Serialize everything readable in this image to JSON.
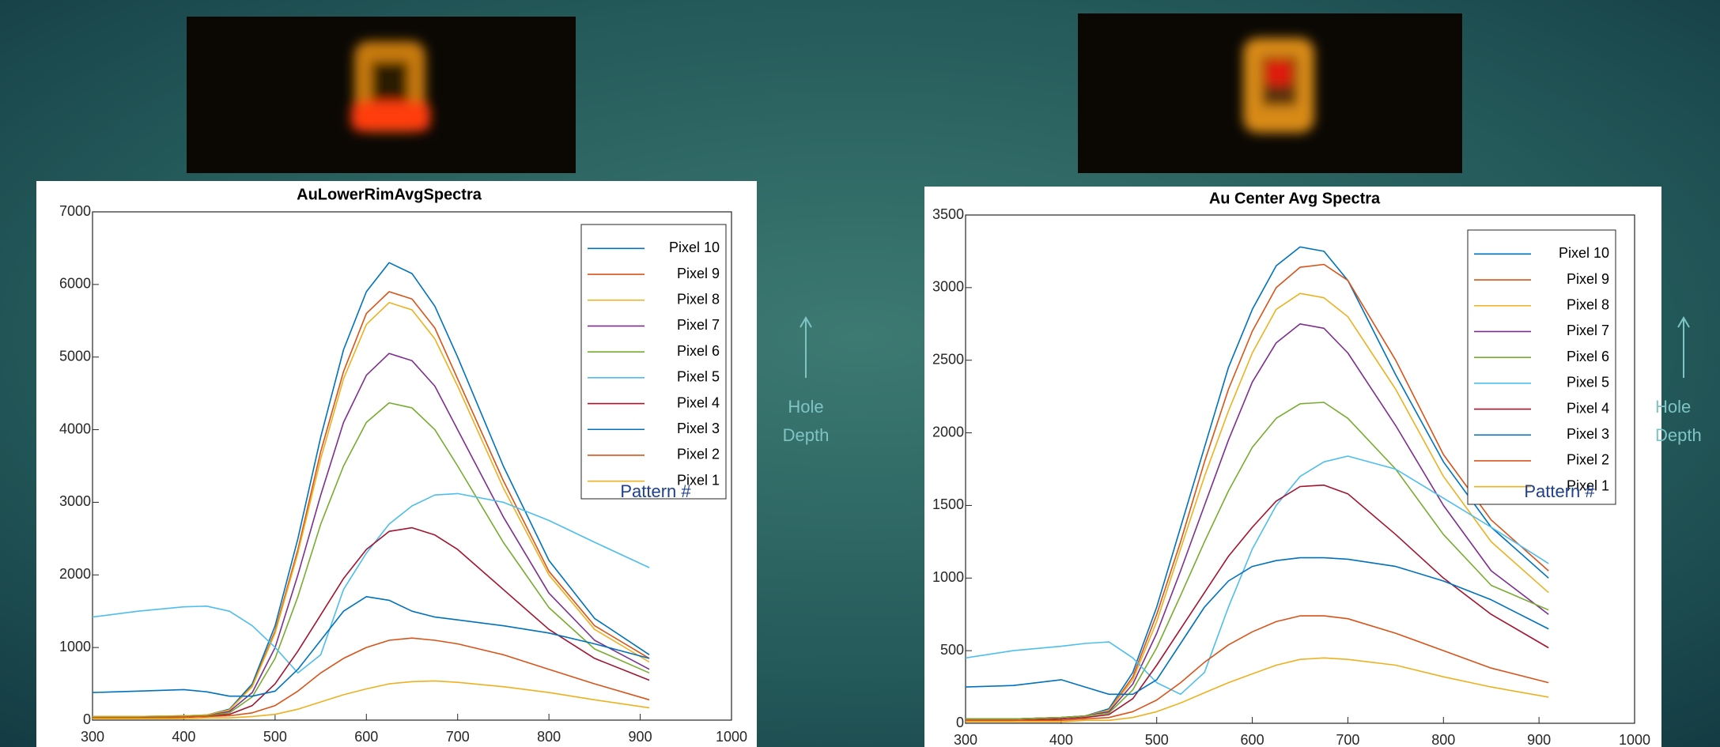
{
  "chart_data": [
    {
      "type": "line",
      "title": "AuLowerRimAvgSpectra",
      "x": [
        300,
        350,
        400,
        425,
        450,
        475,
        500,
        525,
        550,
        575,
        600,
        625,
        650,
        675,
        700,
        750,
        800,
        850,
        910
      ],
      "xlim": [
        300,
        1000
      ],
      "xticks": [
        300,
        400,
        500,
        600,
        700,
        800,
        900,
        1000
      ],
      "ylim": [
        0,
        7000
      ],
      "yticks": [
        0,
        1000,
        2000,
        3000,
        4000,
        5000,
        6000,
        7000
      ],
      "grid": false,
      "legend": "upper right",
      "annotations": [
        "Pattern #",
        "Hole",
        "Depth"
      ],
      "series": [
        {
          "name": "Pixel 10",
          "color": "#0072BD",
          "values": [
            50,
            50,
            60,
            70,
            150,
            500,
            1300,
            2500,
            3900,
            5100,
            5900,
            6300,
            6150,
            5700,
            5000,
            3500,
            2200,
            1400,
            900
          ]
        },
        {
          "name": "Pixel 9",
          "color": "#D95319",
          "values": [
            50,
            50,
            60,
            70,
            140,
            470,
            1230,
            2350,
            3700,
            4800,
            5600,
            5900,
            5800,
            5400,
            4700,
            3300,
            2050,
            1300,
            850
          ]
        },
        {
          "name": "Pixel 8",
          "color": "#EDB120",
          "values": [
            50,
            50,
            60,
            70,
            140,
            460,
            1200,
            2300,
            3600,
            4700,
            5450,
            5750,
            5650,
            5250,
            4600,
            3200,
            2000,
            1250,
            800
          ]
        },
        {
          "name": "Pixel 7",
          "color": "#7E2F8E",
          "values": [
            40,
            40,
            50,
            60,
            120,
            380,
            1000,
            2000,
            3100,
            4100,
            4750,
            5050,
            4950,
            4600,
            4000,
            2800,
            1750,
            1100,
            700
          ]
        },
        {
          "name": "Pixel 6",
          "color": "#77AC30",
          "values": [
            40,
            40,
            50,
            60,
            100,
            320,
            850,
            1700,
            2700,
            3500,
            4100,
            4370,
            4300,
            4000,
            3500,
            2450,
            1550,
            980,
            650
          ]
        },
        {
          "name": "Pixel 5",
          "color": "#4DBEEE",
          "values": [
            1420,
            1500,
            1560,
            1570,
            1500,
            1300,
            1000,
            650,
            900,
            1800,
            2300,
            2700,
            2950,
            3100,
            3120,
            3000,
            2750,
            2450,
            2100
          ]
        },
        {
          "name": "Pixel 4",
          "color": "#A2142F",
          "values": [
            30,
            30,
            40,
            50,
            80,
            200,
            500,
            950,
            1450,
            1950,
            2350,
            2600,
            2650,
            2550,
            2350,
            1800,
            1250,
            850,
            550
          ]
        },
        {
          "name": "Pixel 3",
          "color": "#0072BD",
          "values": [
            380,
            400,
            420,
            390,
            330,
            330,
            400,
            700,
            1100,
            1500,
            1700,
            1650,
            1500,
            1420,
            1380,
            1300,
            1200,
            1050,
            850
          ]
        },
        {
          "name": "Pixel 2",
          "color": "#D95319",
          "values": [
            30,
            30,
            40,
            50,
            60,
            100,
            200,
            400,
            650,
            850,
            1000,
            1100,
            1130,
            1100,
            1050,
            900,
            700,
            500,
            280
          ]
        },
        {
          "name": "Pixel 1",
          "color": "#EDB120",
          "values": [
            20,
            20,
            20,
            30,
            30,
            50,
            80,
            150,
            250,
            350,
            430,
            500,
            530,
            540,
            520,
            460,
            380,
            280,
            170
          ]
        }
      ]
    },
    {
      "type": "line",
      "title": "Au Center Avg Spectra",
      "x": [
        300,
        350,
        400,
        425,
        450,
        475,
        500,
        525,
        550,
        575,
        600,
        625,
        650,
        675,
        700,
        750,
        800,
        850,
        910
      ],
      "xlim": [
        300,
        1000
      ],
      "xticks": [
        300,
        400,
        500,
        600,
        700,
        800,
        900,
        1000
      ],
      "ylim": [
        0,
        3500
      ],
      "yticks": [
        0,
        500,
        1000,
        1500,
        2000,
        2500,
        3000,
        3500
      ],
      "grid": false,
      "legend": "upper right",
      "annotations": [
        "Pattern #",
        "Hole",
        "Depth"
      ],
      "series": [
        {
          "name": "Pixel 10",
          "color": "#0072BD",
          "values": [
            30,
            30,
            40,
            50,
            100,
            350,
            800,
            1350,
            1900,
            2450,
            2850,
            3150,
            3280,
            3250,
            3050,
            2400,
            1800,
            1350,
            1000
          ]
        },
        {
          "name": "Pixel 9",
          "color": "#D95319",
          "values": [
            30,
            30,
            40,
            50,
            90,
            320,
            750,
            1250,
            1800,
            2300,
            2700,
            3000,
            3140,
            3160,
            3050,
            2500,
            1850,
            1400,
            1050
          ]
        },
        {
          "name": "Pixel 8",
          "color": "#EDB120",
          "values": [
            30,
            30,
            40,
            50,
            90,
            300,
            700,
            1200,
            1700,
            2150,
            2550,
            2850,
            2960,
            2930,
            2800,
            2300,
            1700,
            1250,
            900
          ]
        },
        {
          "name": "Pixel 7",
          "color": "#7E2F8E",
          "values": [
            30,
            30,
            40,
            50,
            80,
            270,
            620,
            1050,
            1500,
            1950,
            2350,
            2620,
            2750,
            2720,
            2550,
            2050,
            1500,
            1050,
            750
          ]
        },
        {
          "name": "Pixel 6",
          "color": "#77AC30",
          "values": [
            30,
            30,
            40,
            50,
            70,
            230,
            520,
            880,
            1250,
            1600,
            1900,
            2100,
            2200,
            2210,
            2100,
            1750,
            1300,
            950,
            780
          ]
        },
        {
          "name": "Pixel 5",
          "color": "#4DBEEE",
          "values": [
            450,
            500,
            530,
            550,
            560,
            450,
            280,
            200,
            350,
            800,
            1200,
            1500,
            1700,
            1800,
            1840,
            1750,
            1550,
            1350,
            1100
          ]
        },
        {
          "name": "Pixel 4",
          "color": "#A2142F",
          "values": [
            20,
            20,
            30,
            40,
            60,
            170,
            400,
            650,
            900,
            1150,
            1350,
            1530,
            1630,
            1640,
            1580,
            1300,
            1000,
            750,
            520
          ]
        },
        {
          "name": "Pixel 3",
          "color": "#0072BD",
          "values": [
            250,
            260,
            300,
            250,
            200,
            200,
            300,
            550,
            800,
            980,
            1080,
            1120,
            1140,
            1140,
            1130,
            1080,
            980,
            850,
            650
          ]
        },
        {
          "name": "Pixel 2",
          "color": "#D95319",
          "values": [
            20,
            20,
            20,
            30,
            40,
            80,
            160,
            280,
            420,
            540,
            630,
            700,
            740,
            740,
            720,
            620,
            500,
            380,
            280
          ]
        },
        {
          "name": "Pixel 1",
          "color": "#EDB120",
          "values": [
            10,
            10,
            10,
            20,
            20,
            40,
            80,
            140,
            210,
            280,
            340,
            400,
            440,
            450,
            440,
            400,
            320,
            250,
            180
          ]
        }
      ]
    }
  ]
}
